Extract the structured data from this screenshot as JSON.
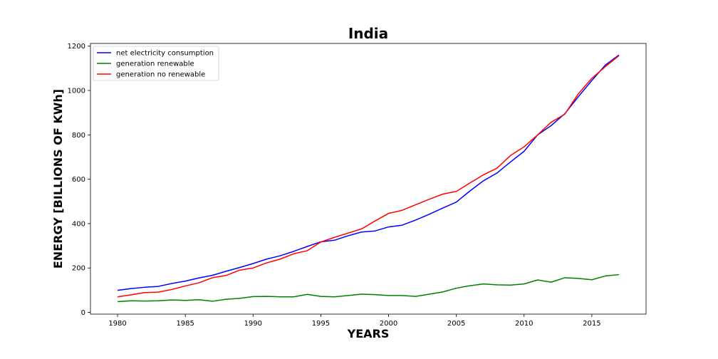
{
  "chart_data": {
    "type": "line",
    "title": "India",
    "xlabel": "YEARS",
    "ylabel": "ENERGY [BILLIONS OF KWh]",
    "xlim": [
      1978,
      2019
    ],
    "ylim": [
      -8,
      1212
    ],
    "xticks": [
      "1980",
      "1985",
      "1990",
      "1995",
      "2000",
      "2005",
      "2010",
      "2015"
    ],
    "yticks": [
      "0",
      "200",
      "400",
      "600",
      "800",
      "1000",
      "1200"
    ],
    "legend_position": "top-left",
    "x": [
      1980,
      1981,
      1982,
      1983,
      1984,
      1985,
      1986,
      1987,
      1988,
      1989,
      1990,
      1991,
      1992,
      1993,
      1994,
      1995,
      1996,
      1997,
      1998,
      1999,
      2000,
      2001,
      2002,
      2003,
      2004,
      2005,
      2006,
      2007,
      2008,
      2009,
      2010,
      2011,
      2012,
      2013,
      2014,
      2015,
      2016,
      2017
    ],
    "series": [
      {
        "name": "net electricity consumption",
        "color": "#0000ff",
        "values": [
          99,
          107,
          113,
          117,
          130,
          141,
          155,
          167,
          185,
          202,
          220,
          240,
          255,
          275,
          297,
          318,
          325,
          345,
          362,
          367,
          385,
          393,
          416,
          442,
          470,
          497,
          547,
          593,
          628,
          678,
          726,
          800,
          842,
          895,
          972,
          1045,
          1115,
          1160
        ]
      },
      {
        "name": "generation renewable",
        "color": "#008000",
        "values": [
          48,
          52,
          51,
          52,
          56,
          54,
          57,
          50,
          59,
          63,
          71,
          72,
          70,
          70,
          81,
          72,
          70,
          76,
          82,
          80,
          76,
          76,
          72,
          82,
          92,
          109,
          120,
          128,
          124,
          123,
          128,
          146,
          136,
          156,
          153,
          147,
          164,
          170
        ]
      },
      {
        "name": "generation no renewable",
        "color": "#ff0000",
        "values": [
          70,
          79,
          89,
          91,
          103,
          119,
          133,
          156,
          166,
          190,
          200,
          223,
          240,
          264,
          278,
          317,
          338,
          357,
          376,
          412,
          446,
          460,
          485,
          510,
          533,
          545,
          583,
          620,
          650,
          707,
          746,
          800,
          857,
          893,
          985,
          1055,
          1108,
          1157
        ]
      }
    ]
  }
}
